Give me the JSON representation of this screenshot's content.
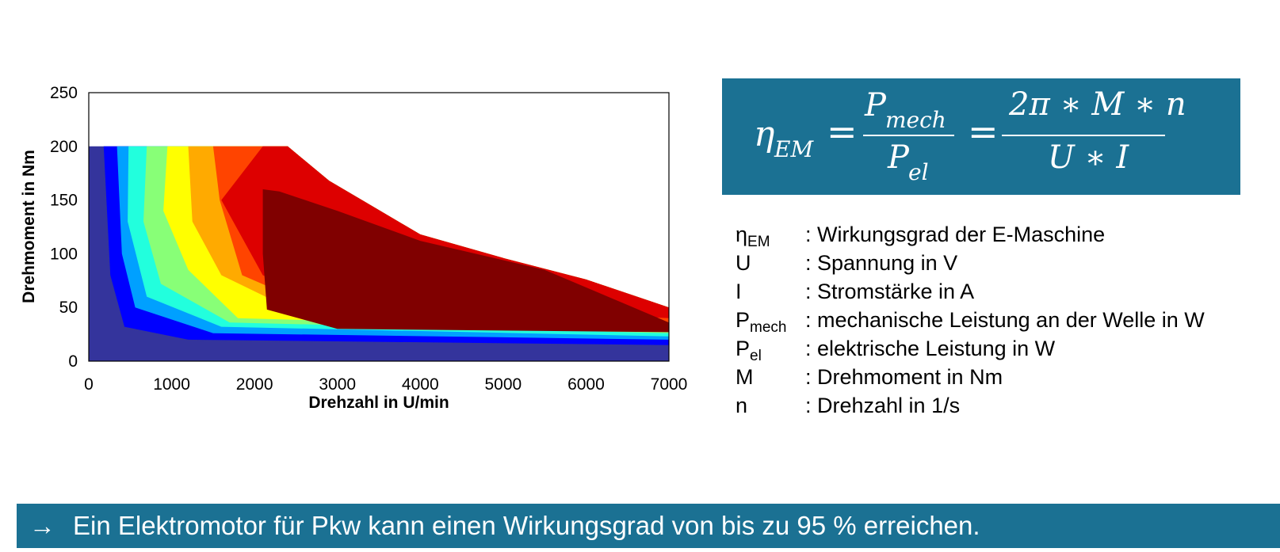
{
  "chart_data": {
    "type": "contour",
    "xlabel": "Drehzahl in U/min",
    "ylabel": "Drehmoment in Nm",
    "xlim": [
      0,
      7000
    ],
    "ylim": [
      0,
      250
    ],
    "x_ticks": [
      0,
      1000,
      2000,
      3000,
      4000,
      5000,
      6000,
      7000
    ],
    "y_ticks": [
      0,
      50,
      100,
      150,
      200,
      250
    ],
    "colormap": "jet",
    "max_torque_curve": [
      [
        0,
        200
      ],
      [
        2100,
        200
      ],
      [
        2400,
        200
      ],
      [
        2900,
        168
      ],
      [
        4000,
        118
      ],
      [
        5000,
        96
      ],
      [
        6000,
        76
      ],
      [
        7000,
        50
      ]
    ],
    "efficiency_levels": [
      {
        "color": "#0000ff",
        "outline": [
          [
            180,
            200
          ],
          [
            260,
            80
          ],
          [
            430,
            32
          ],
          [
            1200,
            20
          ],
          [
            7000,
            15
          ]
        ]
      },
      {
        "color": "#00a0ff",
        "outline": [
          [
            340,
            200
          ],
          [
            400,
            100
          ],
          [
            560,
            50
          ],
          [
            1500,
            26
          ],
          [
            7000,
            20
          ]
        ]
      },
      {
        "color": "#22ffdd",
        "outline": [
          [
            480,
            200
          ],
          [
            470,
            130
          ],
          [
            700,
            60
          ],
          [
            1600,
            32
          ],
          [
            7000,
            23
          ]
        ]
      },
      {
        "color": "#88ff77",
        "outline": [
          [
            700,
            200
          ],
          [
            660,
            130
          ],
          [
            870,
            72
          ],
          [
            1700,
            36
          ],
          [
            7000,
            26
          ]
        ]
      },
      {
        "color": "#ffff00",
        "outline": [
          [
            950,
            200
          ],
          [
            900,
            140
          ],
          [
            1200,
            85
          ],
          [
            1800,
            40
          ],
          [
            7000,
            29
          ]
        ]
      },
      {
        "color": "#ffaa00",
        "outline": [
          [
            1200,
            200
          ],
          [
            1250,
            130
          ],
          [
            1600,
            80
          ],
          [
            2400,
            50
          ],
          [
            7000,
            33
          ]
        ]
      },
      {
        "color": "#ff4400",
        "outline": [
          [
            1500,
            200
          ],
          [
            1580,
            150
          ],
          [
            1850,
            80
          ],
          [
            2600,
            55
          ],
          [
            7000,
            36
          ]
        ]
      },
      {
        "color": "#dd0000",
        "outline": [
          [
            2100,
            200
          ],
          [
            1900,
            180
          ],
          [
            1600,
            150
          ],
          [
            2100,
            80
          ],
          [
            2800,
            56
          ],
          [
            7000,
            40
          ]
        ]
      },
      {
        "color": "#800000",
        "outline": [
          [
            2100,
            160
          ],
          [
            2300,
            158
          ],
          [
            3000,
            140
          ],
          [
            4000,
            112
          ],
          [
            5500,
            85
          ],
          [
            7000,
            36
          ],
          [
            7000,
            27
          ],
          [
            3000,
            30
          ],
          [
            2150,
            48
          ],
          [
            2100,
            100
          ]
        ]
      }
    ]
  },
  "formula": {
    "lhs": "η",
    "lhs_sub": "EM",
    "eq": "=",
    "num1": "P",
    "num1_sub": "mech",
    "den1": "P",
    "den1_sub": "el",
    "num2": "2π ∗ M ∗ n",
    "den2": "U ∗ I"
  },
  "legend": [
    {
      "sym": "η",
      "sub": "EM",
      "desc": ": Wirkungsgrad der E-Maschine"
    },
    {
      "sym": "U",
      "sub": "",
      "desc": ": Spannung in V"
    },
    {
      "sym": "I",
      "sub": "",
      "desc": ": Stromstärke in A"
    },
    {
      "sym": "P",
      "sub": "mech",
      "desc": ": mechanische Leistung an der Welle in W"
    },
    {
      "sym": "P",
      "sub": "el",
      "desc": ": elektrische Leistung in W"
    },
    {
      "sym": "M",
      "sub": "",
      "desc": ": Drehmoment in Nm"
    },
    {
      "sym": "n",
      "sub": "",
      "desc": ": Drehzahl in 1/s"
    }
  ],
  "conclusion": {
    "arrow": "→",
    "text": "Ein Elektromotor für Pkw kann einen Wirkungsgrad von bis zu 95 % erreichen."
  },
  "colors": {
    "banner": "#1b7193",
    "below_range": "#34349c"
  }
}
